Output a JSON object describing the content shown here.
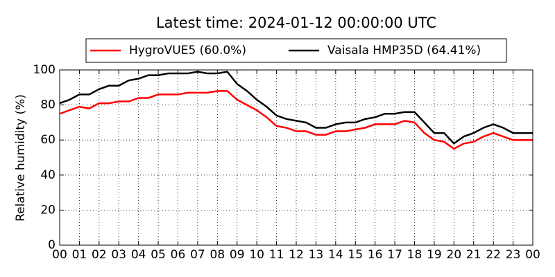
{
  "chart_data": {
    "type": "line",
    "title": "Latest time: 2024-01-12 00:00:00 UTC",
    "y_label": "Relative humidity (%)",
    "x": [
      0,
      0.5,
      1,
      1.5,
      2,
      2.5,
      3,
      3.5,
      4,
      4.5,
      5,
      5.5,
      6,
      6.5,
      7,
      7.5,
      8,
      8.5,
      9,
      9.5,
      10,
      10.5,
      11,
      11.5,
      12,
      12.5,
      13,
      13.5,
      14,
      14.5,
      15,
      15.5,
      16,
      16.5,
      17,
      17.5,
      18,
      18.5,
      19,
      19.5,
      20,
      20.5,
      21,
      21.5,
      22,
      22.5,
      23,
      23.5,
      24
    ],
    "series": [
      {
        "name": "HygroVUE5 (60.0%)",
        "color": "#ff0000",
        "values": [
          75,
          77,
          79,
          78,
          81,
          81,
          82,
          82,
          84,
          84,
          86,
          86,
          86,
          87,
          87,
          87,
          88,
          88,
          83,
          80,
          77,
          73,
          68,
          67,
          65,
          65,
          63,
          63,
          65,
          65,
          66,
          67,
          69,
          69,
          69,
          71,
          70,
          64,
          60,
          59,
          55,
          58,
          59,
          62,
          64,
          62,
          60,
          60,
          60
        ]
      },
      {
        "name": "Vaisala HMP35D (64.41%)",
        "color": "#000000",
        "values": [
          81,
          83,
          86,
          86,
          89,
          91,
          91,
          94,
          95,
          97,
          97,
          98,
          98,
          98,
          99,
          98,
          98,
          99,
          92,
          88,
          83,
          79,
          74,
          72,
          71,
          70,
          67,
          67,
          69,
          70,
          70,
          72,
          73,
          75,
          75,
          76,
          76,
          70,
          64,
          64,
          58,
          62,
          64,
          67,
          69,
          67,
          64,
          64,
          64
        ]
      }
    ],
    "xlim": [
      0,
      24
    ],
    "xticks": [
      {
        "value": 0,
        "label": "00"
      },
      {
        "value": 1,
        "label": "01"
      },
      {
        "value": 2,
        "label": "02"
      },
      {
        "value": 3,
        "label": "03"
      },
      {
        "value": 4,
        "label": "04"
      },
      {
        "value": 5,
        "label": "05"
      },
      {
        "value": 6,
        "label": "06"
      },
      {
        "value": 7,
        "label": "07"
      },
      {
        "value": 8,
        "label": "08"
      },
      {
        "value": 9,
        "label": "09"
      },
      {
        "value": 10,
        "label": "10"
      },
      {
        "value": 11,
        "label": "11"
      },
      {
        "value": 12,
        "label": "12"
      },
      {
        "value": 13,
        "label": "13"
      },
      {
        "value": 14,
        "label": "14"
      },
      {
        "value": 15,
        "label": "15"
      },
      {
        "value": 16,
        "label": "16"
      },
      {
        "value": 17,
        "label": "17"
      },
      {
        "value": 18,
        "label": "18"
      },
      {
        "value": 19,
        "label": "19"
      },
      {
        "value": 20,
        "label": "20"
      },
      {
        "value": 21,
        "label": "21"
      },
      {
        "value": 22,
        "label": "22"
      },
      {
        "value": 23,
        "label": "23"
      },
      {
        "value": 24,
        "label": "00"
      }
    ],
    "ylim": [
      0,
      100
    ],
    "yticks": [
      0,
      20,
      40,
      60,
      80,
      100
    ],
    "grid": true
  }
}
